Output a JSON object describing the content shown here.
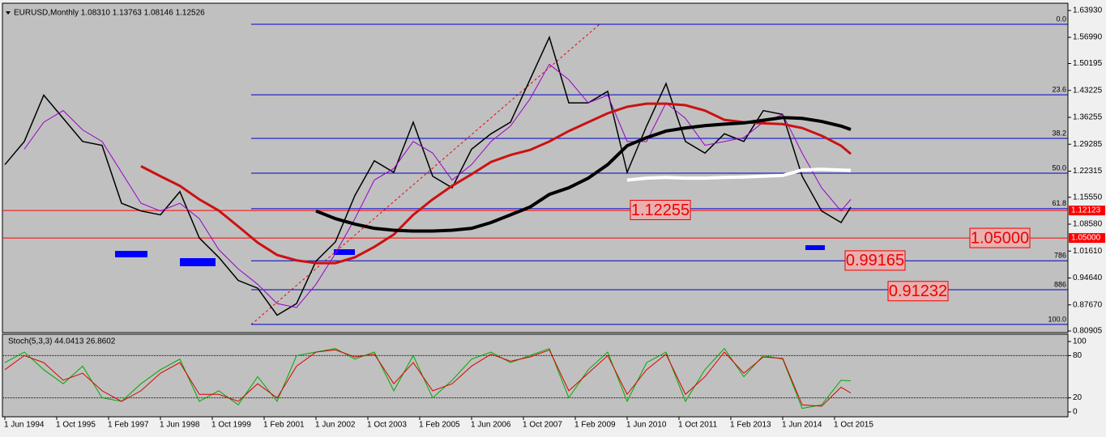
{
  "chart_data": [
    {
      "type": "line",
      "title": "EURUSD,Monthly  1.08310 1.13763 1.08146 1.12526",
      "x": [
        "1994-06",
        "1994-12",
        "1995-06",
        "1995-12",
        "1996-06",
        "1996-12",
        "1997-06",
        "1997-12",
        "1998-06",
        "1998-12",
        "1999-06",
        "1999-12",
        "2000-06",
        "2000-12",
        "2001-06",
        "2001-12",
        "2002-06",
        "2002-12",
        "2003-06",
        "2003-12",
        "2004-06",
        "2004-12",
        "2005-06",
        "2005-12",
        "2006-06",
        "2006-12",
        "2007-06",
        "2007-12",
        "2008-06",
        "2008-12",
        "2009-06",
        "2009-12",
        "2010-06",
        "2010-12",
        "2011-06",
        "2011-12",
        "2012-06",
        "2012-12",
        "2013-06",
        "2013-12",
        "2014-06",
        "2014-12",
        "2015-06",
        "2015-12",
        "2016-03"
      ],
      "series": [
        {
          "color": "#000000",
          "width": 1.5,
          "values": [
            1.24,
            1.3,
            1.42,
            1.36,
            1.3,
            1.29,
            1.14,
            1.12,
            1.11,
            1.17,
            1.05,
            1.0,
            0.94,
            0.92,
            0.85,
            0.88,
            0.99,
            1.04,
            1.16,
            1.25,
            1.22,
            1.35,
            1.21,
            1.18,
            1.28,
            1.32,
            1.35,
            1.46,
            1.57,
            1.4,
            1.4,
            1.43,
            1.22,
            1.34,
            1.45,
            1.3,
            1.27,
            1.32,
            1.3,
            1.38,
            1.37,
            1.21,
            1.12,
            1.09,
            1.13
          ]
        },
        {
          "color": "#9900cc",
          "width": 1,
          "values": [
            null,
            1.28,
            1.35,
            1.38,
            1.33,
            1.3,
            1.22,
            1.14,
            1.12,
            1.14,
            1.1,
            1.02,
            0.97,
            0.93,
            0.88,
            0.87,
            0.93,
            1.01,
            1.1,
            1.2,
            1.23,
            1.3,
            1.27,
            1.2,
            1.24,
            1.3,
            1.34,
            1.41,
            1.5,
            1.46,
            1.4,
            1.42,
            1.3,
            1.3,
            1.4,
            1.36,
            1.29,
            1.3,
            1.31,
            1.35,
            1.37,
            1.27,
            1.18,
            1.12,
            1.15
          ]
        },
        {
          "color": "#cc1111",
          "width": 3,
          "values": [
            null,
            null,
            null,
            null,
            null,
            null,
            null,
            1.236,
            1.21,
            1.185,
            1.15,
            1.121,
            1.08,
            1.038,
            1.006,
            0.992,
            0.985,
            0.985,
            1.0,
            1.027,
            1.059,
            1.11,
            1.15,
            1.185,
            1.215,
            1.247,
            1.265,
            1.278,
            1.3,
            1.327,
            1.35,
            1.373,
            1.39,
            1.398,
            1.398,
            1.394,
            1.38,
            1.356,
            1.35,
            1.347,
            1.345,
            1.335,
            1.315,
            1.289,
            1.268
          ]
        },
        {
          "color": "#000000",
          "width": 4,
          "values": [
            null,
            null,
            null,
            null,
            null,
            null,
            null,
            null,
            null,
            null,
            null,
            null,
            null,
            null,
            null,
            null,
            1.12,
            1.1,
            1.086,
            1.075,
            1.07,
            1.068,
            1.068,
            1.07,
            1.075,
            1.09,
            1.11,
            1.13,
            1.163,
            1.18,
            1.205,
            1.24,
            1.289,
            1.31,
            1.327,
            1.335,
            1.341,
            1.345,
            1.348,
            1.355,
            1.362,
            1.36,
            1.352,
            1.34,
            1.331
          ]
        },
        {
          "color": "#ffffff",
          "width": 4,
          "values": [
            null,
            null,
            null,
            null,
            null,
            null,
            null,
            null,
            null,
            null,
            null,
            null,
            null,
            null,
            null,
            null,
            null,
            null,
            null,
            null,
            null,
            null,
            null,
            null,
            null,
            null,
            null,
            null,
            null,
            null,
            null,
            null,
            1.2,
            1.205,
            1.207,
            1.205,
            1.205,
            1.207,
            1.208,
            1.21,
            1.212,
            1.226,
            1.228,
            1.226,
            1.225
          ]
        }
      ],
      "ylim": [
        0.80905,
        1.6393
      ],
      "yticks": [
        {
          "value": 1.6393,
          "label": "1.63930"
        },
        {
          "value": 1.5699,
          "label": "1.56990"
        },
        {
          "value": 1.50195,
          "label": "1.50195"
        },
        {
          "value": 1.43225,
          "label": "1.43225"
        },
        {
          "value": 1.36255,
          "label": "1.36255"
        },
        {
          "value": 1.29285,
          "label": "1.29285"
        },
        {
          "value": 1.22315,
          "label": "1.22315"
        },
        {
          "value": 1.1555,
          "label": "1.15550"
        },
        {
          "value": 1.0858,
          "label": "1.08580"
        },
        {
          "value": 1.0161,
          "label": "1.01610"
        },
        {
          "value": 0.9464,
          "label": "0.94640"
        },
        {
          "value": 0.8767,
          "label": "0.87670"
        },
        {
          "value": 0.80905,
          "label": "0.80905"
        }
      ],
      "xticks": [
        {
          "value": "1994-06",
          "label": "1 Jun 1994"
        },
        {
          "value": "1995-10",
          "label": "1 Oct 1995"
        },
        {
          "value": "1997-02",
          "label": "1 Feb 1997"
        },
        {
          "value": "1998-06",
          "label": "1 Jun 1998"
        },
        {
          "value": "1999-10",
          "label": "1 Oct 1999"
        },
        {
          "value": "2001-02",
          "label": "1 Feb 2001"
        },
        {
          "value": "2002-06",
          "label": "1 Jun 2002"
        },
        {
          "value": "2003-10",
          "label": "1 Oct 2003"
        },
        {
          "value": "2005-02",
          "label": "1 Feb 2005"
        },
        {
          "value": "2006-06",
          "label": "1 Jun 2006"
        },
        {
          "value": "2007-10",
          "label": "1 Oct 2007"
        },
        {
          "value": "2009-02",
          "label": "1 Feb 2009"
        },
        {
          "value": "2010-06",
          "label": "1 Jun 2010"
        },
        {
          "value": "2011-10",
          "label": "1 Oct 2011"
        },
        {
          "value": "2013-02",
          "label": "1 Feb 2013"
        },
        {
          "value": "2014-06",
          "label": "1 Jun 2014"
        },
        {
          "value": "2015-10",
          "label": "1 Oct 2015"
        }
      ],
      "fib_levels": [
        {
          "value": 1.6037,
          "label": "0.0"
        },
        {
          "value": 1.421,
          "label": "23.6"
        },
        {
          "value": 1.308,
          "label": "38.2"
        },
        {
          "value": 1.218,
          "label": "50.0"
        },
        {
          "value": 1.126,
          "label": "61.8"
        },
        {
          "value": 0.991,
          "label": "786"
        },
        {
          "value": 0.916,
          "label": "886"
        },
        {
          "value": 0.826,
          "label": "100.0"
        }
      ],
      "fib_color": "#0000cc",
      "hlines": [
        {
          "value": 1.12123,
          "label": "1.12123"
        },
        {
          "value": 1.05,
          "label": "1.05000"
        }
      ],
      "hline_color": "#ff0000",
      "annotations": [
        {
          "value": 1.12255,
          "label": "1.12255"
        },
        {
          "value": 1.05,
          "label": "1.05000"
        },
        {
          "value": 0.99165,
          "label": "0.99165"
        },
        {
          "value": 0.91232,
          "label": "0.91232"
        }
      ]
    },
    {
      "type": "line",
      "title": "Stoch(5,3,3) 44.0413 26.8602",
      "x": [
        "1994-06",
        "1994-12",
        "1995-06",
        "1995-12",
        "1996-06",
        "1996-12",
        "1997-06",
        "1997-12",
        "1998-06",
        "1998-12",
        "1999-06",
        "1999-12",
        "2000-06",
        "2000-12",
        "2001-06",
        "2001-12",
        "2002-06",
        "2002-12",
        "2003-06",
        "2003-12",
        "2004-06",
        "2004-12",
        "2005-06",
        "2005-12",
        "2006-06",
        "2006-12",
        "2007-06",
        "2007-12",
        "2008-06",
        "2008-12",
        "2009-06",
        "2009-12",
        "2010-06",
        "2010-12",
        "2011-06",
        "2011-12",
        "2012-06",
        "2012-12",
        "2013-06",
        "2013-12",
        "2014-06",
        "2014-12",
        "2015-06",
        "2015-12",
        "2016-03"
      ],
      "series": [
        {
          "color": "#00aa00",
          "width": 1,
          "values": [
            70,
            85,
            60,
            40,
            65,
            20,
            15,
            40,
            60,
            75,
            15,
            30,
            10,
            50,
            15,
            80,
            85,
            90,
            75,
            85,
            30,
            80,
            20,
            45,
            75,
            85,
            70,
            80,
            90,
            20,
            60,
            85,
            15,
            70,
            85,
            15,
            60,
            90,
            50,
            80,
            75,
            5,
            10,
            45,
            44.0413
          ]
        },
        {
          "color": "#dd0000",
          "width": 1,
          "values": [
            60,
            80,
            70,
            45,
            55,
            30,
            15,
            30,
            55,
            70,
            25,
            25,
            15,
            40,
            20,
            65,
            85,
            88,
            78,
            82,
            40,
            70,
            30,
            40,
            65,
            82,
            72,
            78,
            88,
            30,
            55,
            80,
            25,
            60,
            82,
            25,
            50,
            85,
            55,
            78,
            76,
            10,
            8,
            35,
            26.8602
          ]
        }
      ],
      "ylim": [
        0,
        100
      ],
      "yticks": [
        100,
        80,
        20,
        0
      ]
    }
  ]
}
